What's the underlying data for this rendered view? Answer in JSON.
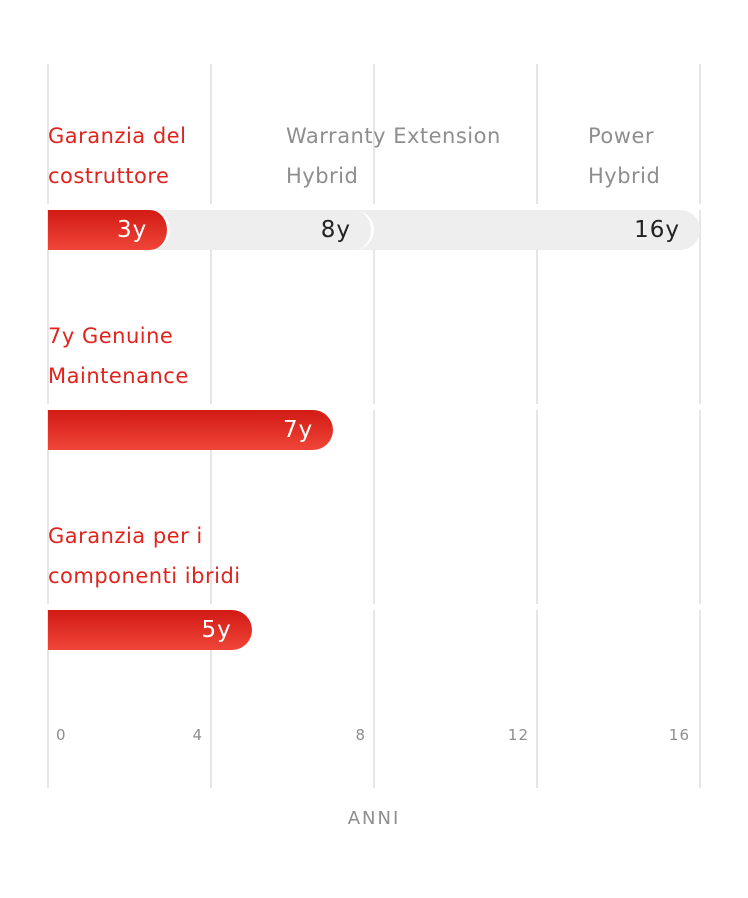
{
  "chart_data": {
    "type": "bar",
    "orientation": "horizontal",
    "xlabel": "ANNI",
    "xlim": [
      0,
      16
    ],
    "x_ticks": [
      "0",
      "4",
      "8",
      "12",
      "16"
    ],
    "grid": true,
    "colors": {
      "primary": "#e0231c",
      "secondary": "#efeeef",
      "text_muted": "#8e8e8e"
    },
    "rows": [
      {
        "labels": [
          {
            "text": "Garanzia del costruttore",
            "color": "red"
          },
          {
            "text": "Warranty Extension Hybrid",
            "color": "grey"
          },
          {
            "text": "Power Hybrid",
            "color": "grey"
          }
        ],
        "bars": [
          {
            "value": 3,
            "label": "3y",
            "color": "red"
          },
          {
            "value": 8,
            "label": "8y",
            "color": "grey"
          },
          {
            "value": 16,
            "label": "16y",
            "color": "grey"
          }
        ]
      },
      {
        "labels": [
          {
            "text": "7y Genuine Maintenance",
            "color": "red"
          }
        ],
        "bars": [
          {
            "value": 7,
            "label": "7y",
            "color": "red"
          }
        ]
      },
      {
        "labels": [
          {
            "text": "Garanzia per i componenti ibridi",
            "color": "red"
          }
        ],
        "bars": [
          {
            "value": 5,
            "label": "5y",
            "color": "red"
          }
        ]
      }
    ]
  }
}
